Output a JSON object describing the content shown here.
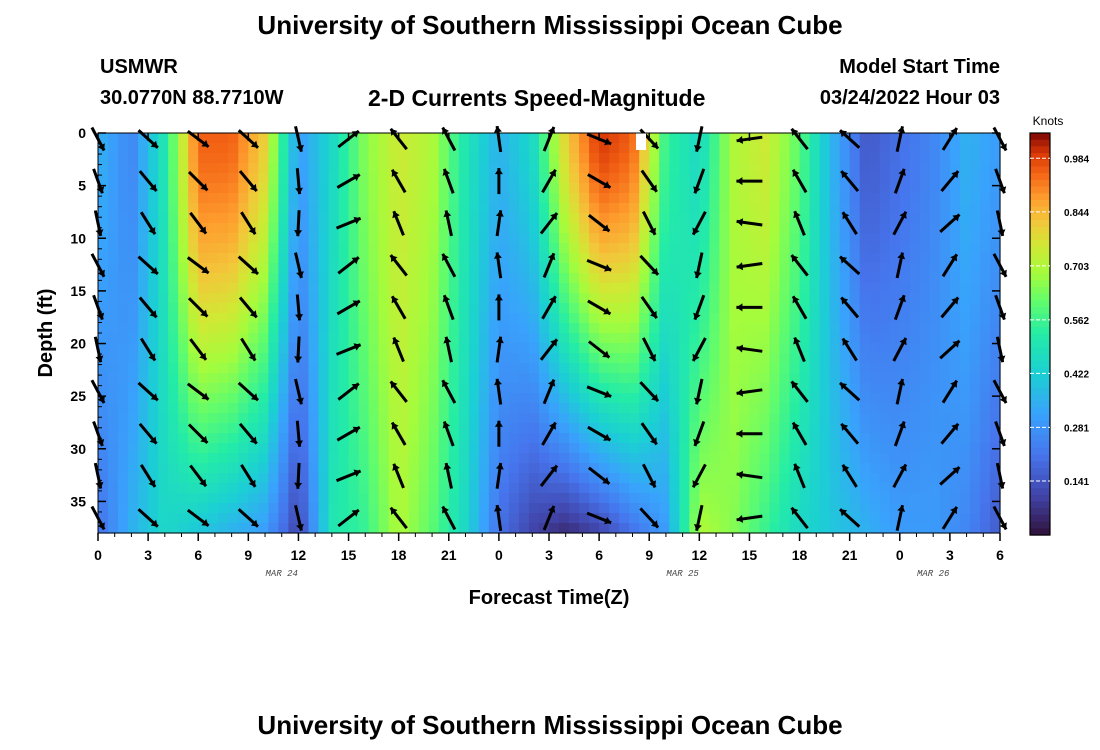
{
  "header": {
    "title": "University of Southern Mississippi Ocean Cube",
    "station": "USMWR",
    "coords": "30.0770N  88.7710W",
    "subtitle": "2-D Currents Speed-Magnitude",
    "model_label": "Model Start Time",
    "model_time": "03/24/2022 Hour 03"
  },
  "footer": {
    "title": "University of Southern Mississippi Ocean Cube"
  },
  "chart_data": {
    "type": "heatmap",
    "xlabel": "Forecast Time(Z)",
    "ylabel": "Depth (ft)",
    "x_tick_labels": [
      "0",
      "3",
      "6",
      "9",
      "12",
      "15",
      "18",
      "21",
      "0",
      "3",
      "6",
      "9",
      "12",
      "15",
      "18",
      "21",
      "0",
      "3",
      "6"
    ],
    "date_labels": [
      {
        "label": "MAR 24",
        "x_index": 11
      },
      {
        "label": "MAR 25",
        "x_index": 35
      },
      {
        "label": "MAR 26",
        "x_index": 50
      }
    ],
    "x_hours_range": [
      0,
      54
    ],
    "y_ticks": [
      0,
      5,
      10,
      15,
      20,
      25,
      30,
      35
    ],
    "ylim": [
      0,
      38
    ],
    "y_inverted": true,
    "colorbar": {
      "unit": "Knots",
      "labels": [
        "0.984",
        "0.844",
        "0.703",
        "0.562",
        "0.422",
        "0.281",
        "0.141"
      ],
      "range": [
        0.0,
        1.05
      ],
      "colormap": "turbo"
    },
    "speed_field": {
      "description_units": "knots",
      "bands": [
        {
          "hour": 0,
          "speed_top": 0.35,
          "speed_bottom": 0.2
        },
        {
          "hour": 2,
          "speed_top": 0.25,
          "speed_bottom": 0.35
        },
        {
          "hour": 4,
          "speed_top": 0.5,
          "speed_bottom": 0.45
        },
        {
          "hour": 6,
          "speed_top": 0.95,
          "speed_bottom": 0.4
        },
        {
          "hour": 8,
          "speed_top": 0.95,
          "speed_bottom": 0.35
        },
        {
          "hour": 10,
          "speed_top": 0.8,
          "speed_bottom": 0.3
        },
        {
          "hour": 12,
          "speed_top": 0.3,
          "speed_bottom": 0.1
        },
        {
          "hour": 14,
          "speed_top": 0.45,
          "speed_bottom": 0.5
        },
        {
          "hour": 16,
          "speed_top": 0.65,
          "speed_bottom": 0.55
        },
        {
          "hour": 18,
          "speed_top": 0.75,
          "speed_bottom": 0.7
        },
        {
          "hour": 20,
          "speed_top": 0.7,
          "speed_bottom": 0.6
        },
        {
          "hour": 22,
          "speed_top": 0.5,
          "speed_bottom": 0.45
        },
        {
          "hour": 24,
          "speed_top": 0.35,
          "speed_bottom": 0.2
        },
        {
          "hour": 26,
          "speed_top": 0.45,
          "speed_bottom": 0.1
        },
        {
          "hour": 28,
          "speed_top": 0.8,
          "speed_bottom": 0.05
        },
        {
          "hour": 30,
          "speed_top": 1.0,
          "speed_bottom": 0.1
        },
        {
          "hour": 32,
          "speed_top": 0.95,
          "speed_bottom": 0.2
        },
        {
          "hour": 34,
          "speed_top": 0.55,
          "speed_bottom": 0.3
        },
        {
          "hour": 36,
          "speed_top": 0.45,
          "speed_bottom": 0.7
        },
        {
          "hour": 38,
          "speed_top": 0.7,
          "speed_bottom": 0.65
        },
        {
          "hour": 40,
          "speed_top": 0.75,
          "speed_bottom": 0.55
        },
        {
          "hour": 42,
          "speed_top": 0.6,
          "speed_bottom": 0.45
        },
        {
          "hour": 44,
          "speed_top": 0.35,
          "speed_bottom": 0.4
        },
        {
          "hour": 46,
          "speed_top": 0.15,
          "speed_bottom": 0.35
        },
        {
          "hour": 48,
          "speed_top": 0.2,
          "speed_bottom": 0.3
        },
        {
          "hour": 50,
          "speed_top": 0.25,
          "speed_bottom": 0.3
        },
        {
          "hour": 52,
          "speed_top": 0.35,
          "speed_bottom": 0.25
        },
        {
          "hour": 54,
          "speed_top": 0.3,
          "speed_bottom": 0.15
        }
      ]
    },
    "vector_columns": [
      {
        "hour": 0,
        "dir_deg": 160
      },
      {
        "hour": 3,
        "dir_deg": 140
      },
      {
        "hour": 6,
        "dir_deg": 135
      },
      {
        "hour": 9,
        "dir_deg": 140
      },
      {
        "hour": 12,
        "dir_deg": 175
      },
      {
        "hour": 15,
        "dir_deg": 60
      },
      {
        "hour": 18,
        "dir_deg": 330
      },
      {
        "hour": 21,
        "dir_deg": 340
      },
      {
        "hour": 24,
        "dir_deg": 0
      },
      {
        "hour": 27,
        "dir_deg": 30
      },
      {
        "hour": 30,
        "dir_deg": 120
      },
      {
        "hour": 33,
        "dir_deg": 145
      },
      {
        "hour": 36,
        "dir_deg": 200
      },
      {
        "hour": 39,
        "dir_deg": 270
      },
      {
        "hour": 42,
        "dir_deg": 330
      },
      {
        "hour": 45,
        "dir_deg": 320
      },
      {
        "hour": 48,
        "dir_deg": 20
      },
      {
        "hour": 51,
        "dir_deg": 40
      },
      {
        "hour": 54,
        "dir_deg": 160
      }
    ],
    "arrow_depths": [
      0,
      4,
      8,
      12,
      16,
      20,
      24,
      28,
      32,
      36
    ]
  }
}
